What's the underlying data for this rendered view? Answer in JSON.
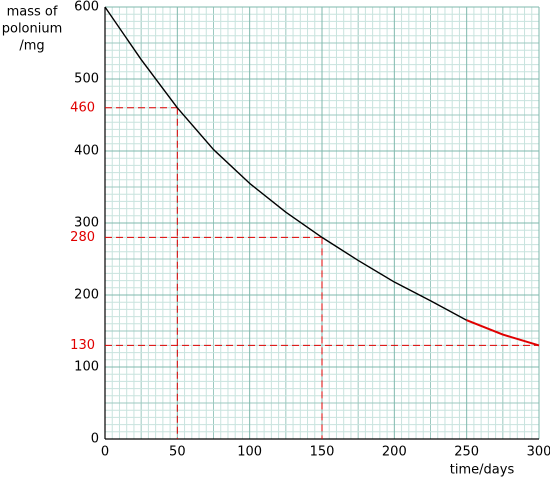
{
  "chart_data": {
    "type": "line",
    "ylabel": [
      "mass of",
      "polonium",
      "/mg"
    ],
    "xlabel": "time/days",
    "x": [
      0,
      25,
      50,
      75,
      100,
      125,
      150,
      175,
      200,
      225,
      250,
      275,
      300
    ],
    "series": [
      {
        "color": "#000000",
        "values": [
          600,
          527,
          460,
          402,
          355,
          315,
          280,
          248,
          218,
          192,
          165,
          null,
          null
        ]
      },
      {
        "color": "#e00000",
        "values": [
          null,
          null,
          null,
          null,
          null,
          null,
          null,
          null,
          null,
          null,
          165,
          145,
          130
        ]
      }
    ],
    "xlim": [
      0,
      300
    ],
    "xticks": [
      0,
      50,
      100,
      150,
      200,
      250,
      300
    ],
    "ylim": [
      0,
      600
    ],
    "yticks": [
      0,
      100,
      200,
      300,
      400,
      500,
      600
    ],
    "grid": true,
    "annotations": [
      {
        "x": 50,
        "y": 460,
        "color": "#e00000"
      },
      {
        "x": 150,
        "y": 280,
        "color": "#e00000"
      },
      {
        "y": 130,
        "color": "#e00000"
      }
    ]
  }
}
